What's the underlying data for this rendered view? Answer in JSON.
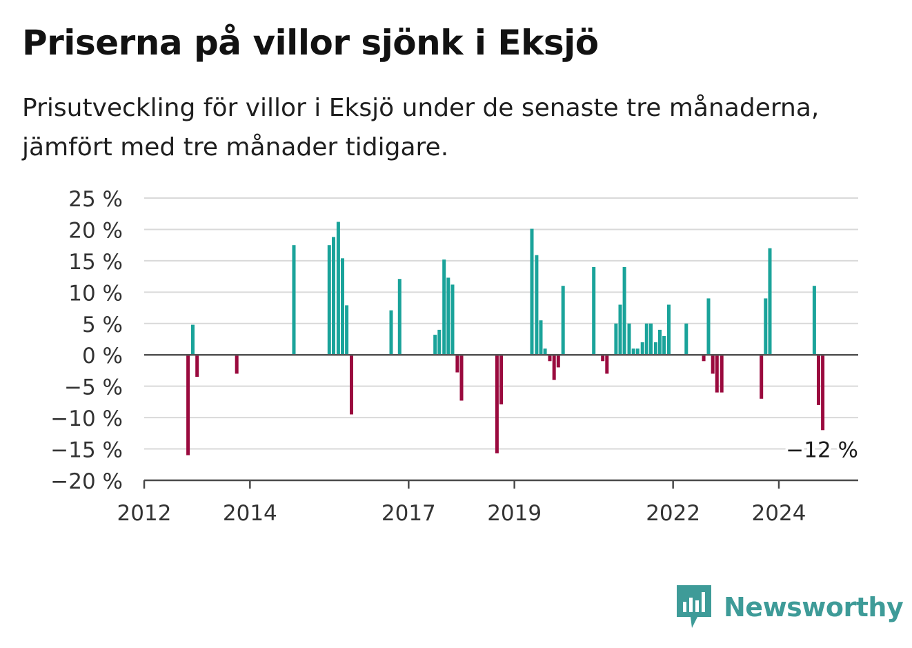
{
  "header": {
    "title": "Priserna på villor sjönk i Eksjö",
    "subtitle": "Prisutveckling för villor i Eksjö under de senaste tre månaderna, jämfört med tre månader tidigare."
  },
  "brand": {
    "name": "Newsworthy",
    "icon": "bar-chart-speech-bubble-icon",
    "color": "#3e9b98"
  },
  "colors": {
    "positive": "#1aa39a",
    "negative": "#9a0a3e",
    "grid": "#d9d9d9",
    "axis": "#4a4a4a"
  },
  "chart_data": {
    "type": "bar",
    "unit": "%",
    "xlim": [
      2012.0,
      2025.5
    ],
    "ylim": [
      -20,
      25
    ],
    "yticks": [
      25,
      20,
      15,
      10,
      5,
      0,
      -5,
      -10,
      -15,
      -20
    ],
    "ytick_labels": [
      "25 %",
      "20 %",
      "15 %",
      "10 %",
      "5 %",
      "0 %",
      "−5 %",
      "−10 %",
      "−15 %",
      "−20 %"
    ],
    "xticks": [
      2012,
      2014,
      2017,
      2019,
      2022,
      2024
    ],
    "xtick_labels": [
      "2012",
      "2014",
      "2017",
      "2019",
      "2022",
      "2024"
    ],
    "grid": true,
    "positive_color": "#1aa39a",
    "negative_color": "#9a0a3e",
    "last_value_label": "−12 %",
    "series": [
      {
        "points": [
          {
            "x": 2012.83,
            "y": -16
          },
          {
            "x": 2012.92,
            "y": 4.8
          },
          {
            "x": 2013.0,
            "y": -3.5
          },
          {
            "x": 2013.75,
            "y": -3
          },
          {
            "x": 2014.83,
            "y": 17.5
          },
          {
            "x": 2015.5,
            "y": 17.5
          },
          {
            "x": 2015.58,
            "y": 18.8
          },
          {
            "x": 2015.67,
            "y": 21.2
          },
          {
            "x": 2015.75,
            "y": 15.4
          },
          {
            "x": 2015.83,
            "y": 7.9
          },
          {
            "x": 2015.92,
            "y": -9.5
          },
          {
            "x": 2016.67,
            "y": 7.1
          },
          {
            "x": 2016.83,
            "y": 12.1
          },
          {
            "x": 2017.5,
            "y": 3.2
          },
          {
            "x": 2017.58,
            "y": 4
          },
          {
            "x": 2017.67,
            "y": 15.2
          },
          {
            "x": 2017.75,
            "y": 12.3
          },
          {
            "x": 2017.83,
            "y": 11.2
          },
          {
            "x": 2017.92,
            "y": -2.8
          },
          {
            "x": 2018.0,
            "y": -7.3
          },
          {
            "x": 2018.67,
            "y": -15.7
          },
          {
            "x": 2018.75,
            "y": -7.9
          },
          {
            "x": 2019.33,
            "y": 20.1
          },
          {
            "x": 2019.42,
            "y": 15.9
          },
          {
            "x": 2019.5,
            "y": 5.5
          },
          {
            "x": 2019.58,
            "y": 1
          },
          {
            "x": 2019.67,
            "y": -1
          },
          {
            "x": 2019.75,
            "y": -4
          },
          {
            "x": 2019.83,
            "y": -2
          },
          {
            "x": 2019.92,
            "y": 11
          },
          {
            "x": 2020.5,
            "y": 14
          },
          {
            "x": 2020.67,
            "y": -1
          },
          {
            "x": 2020.75,
            "y": -3
          },
          {
            "x": 2020.92,
            "y": 5
          },
          {
            "x": 2021.0,
            "y": 8
          },
          {
            "x": 2021.08,
            "y": 14
          },
          {
            "x": 2021.17,
            "y": 5
          },
          {
            "x": 2021.25,
            "y": 1
          },
          {
            "x": 2021.33,
            "y": 1
          },
          {
            "x": 2021.42,
            "y": 2
          },
          {
            "x": 2021.5,
            "y": 5
          },
          {
            "x": 2021.58,
            "y": 5
          },
          {
            "x": 2021.67,
            "y": 2
          },
          {
            "x": 2021.75,
            "y": 4
          },
          {
            "x": 2021.83,
            "y": 3
          },
          {
            "x": 2021.92,
            "y": 8
          },
          {
            "x": 2022.25,
            "y": 5
          },
          {
            "x": 2022.58,
            "y": -1
          },
          {
            "x": 2022.67,
            "y": 9
          },
          {
            "x": 2022.75,
            "y": -3
          },
          {
            "x": 2022.83,
            "y": -6
          },
          {
            "x": 2022.92,
            "y": -6
          },
          {
            "x": 2023.67,
            "y": -7
          },
          {
            "x": 2023.75,
            "y": 9
          },
          {
            "x": 2023.83,
            "y": 17
          },
          {
            "x": 2024.67,
            "y": 11
          },
          {
            "x": 2024.75,
            "y": -8
          },
          {
            "x": 2024.83,
            "y": -12
          }
        ]
      }
    ]
  }
}
